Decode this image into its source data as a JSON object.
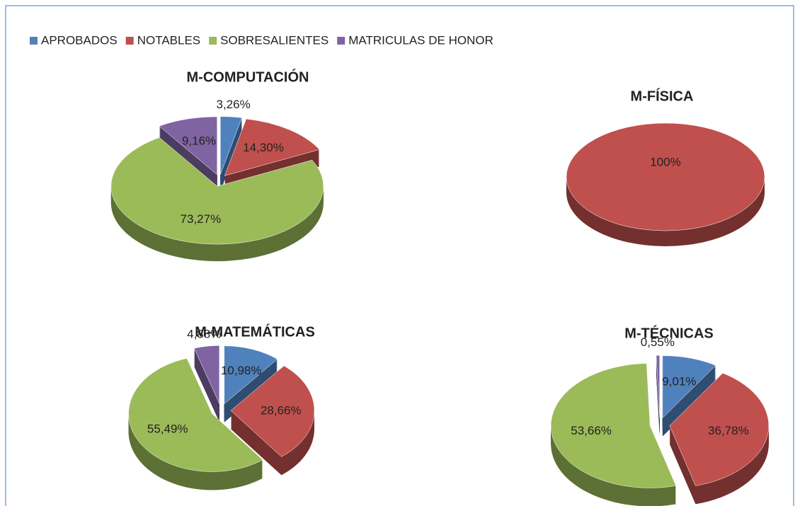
{
  "legend": {
    "categories": [
      "APROBADOS",
      "NOTABLES",
      "SOBRESALIENTES",
      "MATRICULAS DE HONOR"
    ],
    "colors": [
      "#4f81bd",
      "#c0504d",
      "#9bbb59",
      "#8064a2"
    ]
  },
  "chart_data": [
    {
      "type": "pie",
      "title": "M-COMPUTACIÓN",
      "values": [
        3.26,
        14.3,
        73.27,
        9.16
      ],
      "value_labels": [
        "3,26%",
        "14,30%",
        "73,27%",
        "9,16%"
      ]
    },
    {
      "type": "pie",
      "title": "M-FÍSICA",
      "values": [
        null,
        100,
        null,
        null
      ],
      "value_labels": [
        null,
        "100%",
        null,
        null
      ]
    },
    {
      "type": "pie",
      "title": "M-MATEMÁTICAS",
      "values": [
        10.98,
        28.66,
        55.49,
        4.88
      ],
      "value_labels": [
        "10,98%",
        "28,66%",
        "55,49%",
        "4,88%"
      ]
    },
    {
      "type": "pie",
      "title": "M-TÉCNICAS",
      "values": [
        9.01,
        36.78,
        53.66,
        0.55
      ],
      "value_labels": [
        "9,01%",
        "36,78%",
        "53,66%",
        "0,55%"
      ]
    }
  ]
}
